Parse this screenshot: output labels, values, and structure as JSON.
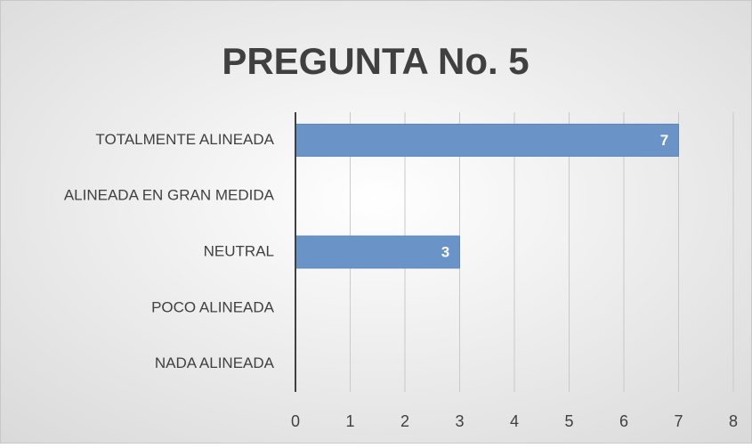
{
  "chart_data": {
    "type": "hbar",
    "title": "PREGUNTA No. 5",
    "categories": [
      "TOTALMENTE ALINEADA",
      "ALINEADA EN GRAN MEDIDA",
      "NEUTRAL",
      "POCO ALINEADA",
      "NADA ALINEADA"
    ],
    "values": [
      7,
      null,
      3,
      null,
      null
    ],
    "color": "#6a93c8",
    "xlim": [
      0,
      8
    ],
    "xticks": [
      0,
      1,
      2,
      3,
      4,
      5,
      6,
      7,
      8
    ],
    "grid": true
  }
}
